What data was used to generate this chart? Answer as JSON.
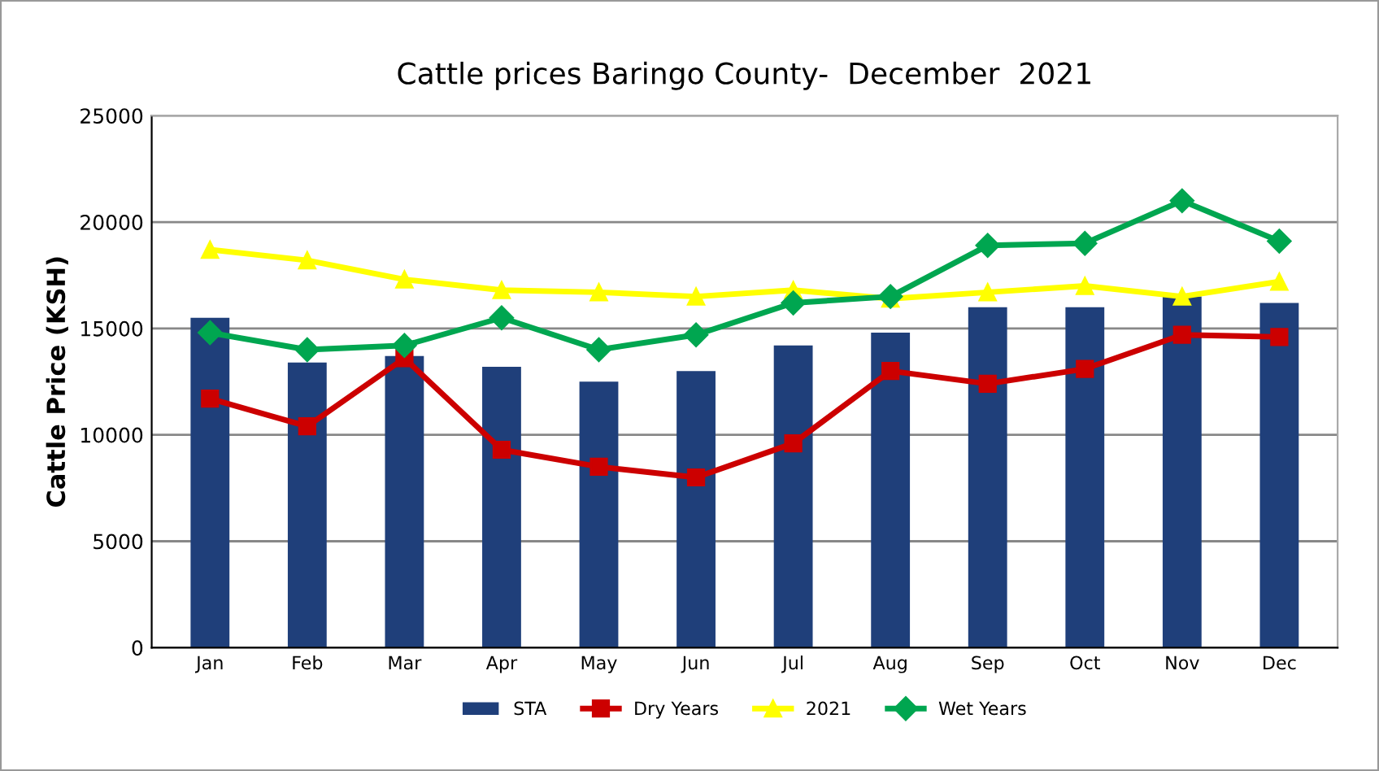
{
  "chart_data": {
    "type": "bar",
    "title": "Cattle prices Baringo County-  December  2021",
    "ylabel": "Cattle Price (KSH)",
    "categories": [
      "Jan",
      "Feb",
      "Mar",
      "Apr",
      "May",
      "Jun",
      "Jul",
      "Aug",
      "Sep",
      "Oct",
      "Nov",
      "Dec"
    ],
    "series": [
      {
        "name": "STA",
        "color": "#1f3f7a",
        "values": [
          15500,
          13400,
          13700,
          13200,
          12500,
          13000,
          14200,
          14800,
          16000,
          16000,
          16500,
          16200
        ]
      },
      {
        "name": "Dry Years",
        "type": "line",
        "color": "#cc0000",
        "marker": "square",
        "values": [
          11700,
          10400,
          13600,
          9300,
          8500,
          8000,
          9600,
          13000,
          12400,
          13100,
          14700,
          14600
        ]
      },
      {
        "name": "2021",
        "type": "line",
        "color": "#ffff00",
        "marker": "triangle",
        "values": [
          18700,
          18200,
          17300,
          16800,
          16700,
          16500,
          16800,
          16400,
          16700,
          17000,
          16500,
          17200
        ]
      },
      {
        "name": "Wet Years",
        "type": "line",
        "color": "#00a650",
        "marker": "diamond",
        "values": [
          14800,
          14000,
          14200,
          15500,
          14000,
          14700,
          16200,
          16500,
          18900,
          19000,
          21000,
          19100
        ]
      }
    ],
    "ylim": [
      0,
      25000
    ],
    "yticks": [
      0,
      5000,
      10000,
      15000,
      20000,
      25000
    ],
    "grid": "y",
    "legend": "bottom"
  }
}
